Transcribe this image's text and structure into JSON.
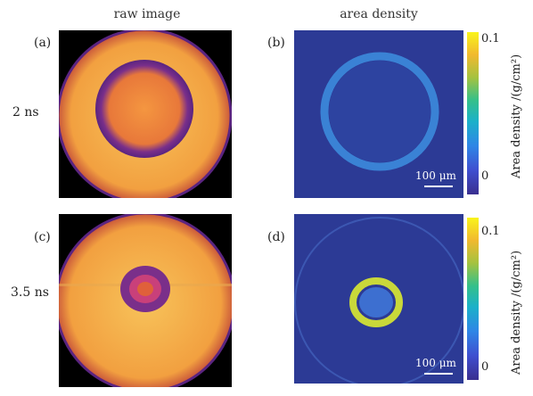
{
  "figure": {
    "column_titles": {
      "left": "raw image",
      "right": "area density"
    },
    "rows": [
      {
        "time_label": "2 ns",
        "raw_label": "(a)",
        "density_label": "(b)",
        "scalebar": "100 μm",
        "colorbar": {
          "max_label": "0.1",
          "min_label": "0",
          "title": "Area density /(g/cm²)"
        }
      },
      {
        "time_label": "3.5 ns",
        "raw_label": "(c)",
        "density_label": "(d)",
        "scalebar": "100 μm",
        "colorbar": {
          "max_label": "0.1",
          "min_label": "0",
          "title": "Area density /(g/cm²)"
        }
      }
    ],
    "colors": {
      "raw_bright": "#f5a84a",
      "raw_ring": "#6b2a8a",
      "density_bg": "#2c3a95",
      "density_ring_2ns": "#3d8fe0",
      "density_ring_3_5ns": "#c9d83a"
    }
  }
}
